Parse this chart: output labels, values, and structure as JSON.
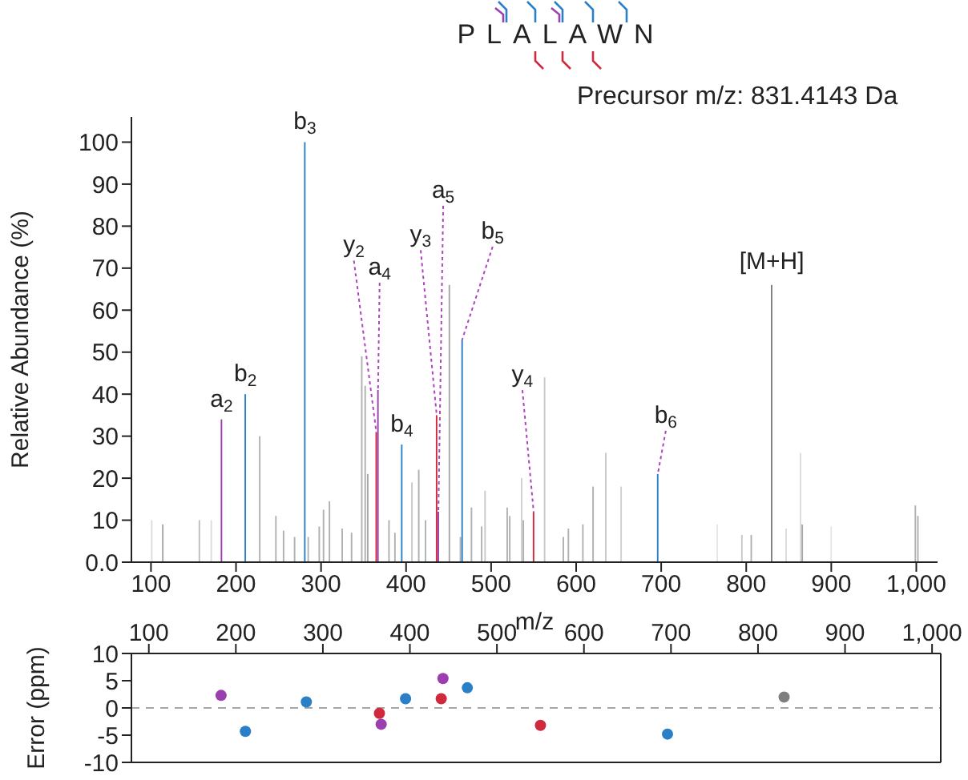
{
  "chart_data": [
    {
      "type": "bar",
      "title": "PLALAWN",
      "subtitle": "Precursor m/z: 831.4143 Da",
      "xlabel": "m/z",
      "ylabel": "Relative Abundance (%)",
      "x": [
        101,
        114,
        157,
        171,
        183,
        211,
        228,
        247,
        256,
        269,
        281,
        285,
        298,
        303,
        310,
        325,
        336,
        348,
        352,
        355,
        365,
        367,
        380,
        387,
        395,
        407,
        415,
        423,
        436,
        438,
        451,
        464,
        466,
        477,
        489,
        493,
        519,
        522,
        536,
        538,
        550,
        563,
        585,
        591,
        608,
        620,
        635,
        653,
        696,
        766,
        795,
        806,
        830,
        847,
        864,
        866,
        900,
        999,
        1002
      ],
      "values": [
        10,
        9,
        10,
        10,
        34,
        40,
        30,
        11,
        7.5,
        6,
        100,
        6,
        8.5,
        12.5,
        14.5,
        8,
        7,
        49,
        42,
        21,
        31,
        41,
        10,
        7,
        28,
        19,
        22,
        10,
        35,
        12,
        66,
        6,
        53,
        13,
        8.5,
        17,
        13,
        11,
        20,
        10,
        12,
        44,
        6,
        8,
        9,
        18,
        26,
        18,
        21,
        9,
        6.5,
        6.5,
        66,
        8,
        26,
        9,
        8.5,
        13.5,
        11
      ],
      "colors": [
        "#dcdcdc",
        "#a6a6a6",
        "#bdbdbd",
        "#dcdcdc",
        "#9b3fb0",
        "#2a7fc6",
        "#b0b0b0",
        "#b0b0b0",
        "#b0b0b0",
        "#b0b0b0",
        "#2a7fc6",
        "#b0b0b0",
        "#b0b0b0",
        "#b0b0b0",
        "#b0b0b0",
        "#b0b0b0",
        "#b0b0b0",
        "#b0b0b0",
        "#b0b0b0",
        "#a6a6a6",
        "#d0283c",
        "#9b3fb0",
        "#b0b0b0",
        "#b0b0b0",
        "#2a7fc6",
        "#c8c8c8",
        "#b0b0b0",
        "#b0b0b0",
        "#d0283c",
        "#9b3fb0",
        "#a6a6a6",
        "#b0b0b0",
        "#2a7fc6",
        "#b0b0b0",
        "#b0b0b0",
        "#c8c8c8",
        "#b0b0b0",
        "#b0b0b0",
        "#d0d0d0",
        "#b0b0b0",
        "#d0283c",
        "#c8c8c8",
        "#b0b0b0",
        "#b0b0b0",
        "#b0b0b0",
        "#b0b0b0",
        "#c8c8c8",
        "#d0d0d0",
        "#2a7fc6",
        "#e6e6e6",
        "#c8c8c8",
        "#b0b0b0",
        "#7f7f7f",
        "#dcdcdc",
        "#dcdcdc",
        "#a6a6a6",
        "#e6e6e6",
        "#b0b0b0",
        "#b0b0b0"
      ],
      "xlim": [
        77,
        1025
      ],
      "xticks": [
        100,
        200,
        300,
        400,
        500,
        600,
        700,
        800,
        900,
        {
          "value": 1000,
          "label": "1,000"
        }
      ],
      "ylim": [
        0,
        106
      ],
      "yticks": [
        {
          "value": 0,
          "label": "0.0"
        },
        10,
        20,
        30,
        40,
        50,
        60,
        70,
        80,
        90,
        100
      ],
      "annotations": [
        {
          "text": "a$_{2}$",
          "x": 183,
          "y": 34
        },
        {
          "text": "b$_{2}$",
          "x": 211,
          "y": 40
        },
        {
          "text": "b$_{3}$",
          "x": 281,
          "y": 100
        },
        {
          "text": "y$_{2}$",
          "x": 365,
          "y": 31
        },
        {
          "text": "a$_{4}$",
          "x": 367,
          "y": 41
        },
        {
          "text": "b$_{4}$",
          "x": 395,
          "y": 28
        },
        {
          "text": "y$_{3}$",
          "x": 436,
          "y": 35
        },
        {
          "text": "a$_{5}$",
          "x": 438,
          "y": 12
        },
        {
          "text": "b$_{5}$",
          "x": 466,
          "y": 53
        },
        {
          "text": "y$_{4}$",
          "x": 550,
          "y": 12
        },
        {
          "text": "b$_{6}$",
          "x": 696,
          "y": 21
        },
        {
          "text": "[M+H]",
          "x": 830,
          "y": 66
        }
      ]
    },
    {
      "type": "scatter",
      "ylabel": "Error (ppm)",
      "marker": "circle",
      "x": [
        183,
        211,
        281,
        365,
        367,
        395,
        436,
        438,
        466,
        550,
        696,
        830
      ],
      "values": [
        2.3,
        -4.3,
        1.1,
        -1,
        -3,
        1.7,
        1.7,
        5.4,
        3.7,
        -3.2,
        -4.8,
        2
      ],
      "colors": [
        "#9b3fb0",
        "#2a7fc6",
        "#2a7fc6",
        "#d0283c",
        "#9b3fb0",
        "#2a7fc6",
        "#d0283c",
        "#9b3fb0",
        "#2a7fc6",
        "#d0283c",
        "#2a7fc6",
        "#7f7f7f"
      ],
      "xlim": [
        80,
        1010
      ],
      "xticks": [
        100,
        200,
        300,
        400,
        500,
        600,
        700,
        800,
        900,
        {
          "value": 1000,
          "label": "1,000"
        }
      ],
      "ylim": [
        -10,
        10
      ],
      "yticks": [
        10,
        5,
        0,
        -5,
        -10
      ],
      "ref_lines": [
        {
          "axis": "y",
          "value": 0,
          "color": "#a6a6a6",
          "line_style": "dashed"
        }
      ]
    }
  ]
}
